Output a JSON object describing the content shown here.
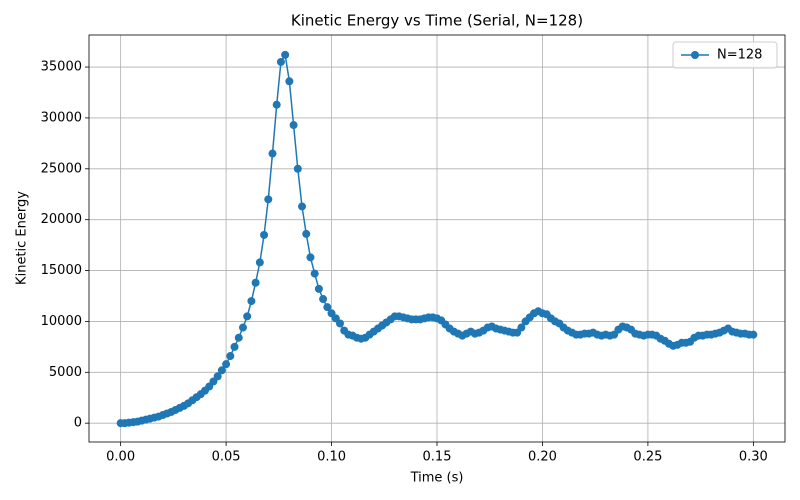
{
  "chart_data": {
    "type": "line",
    "title": "Kinetic Energy vs Time (Serial, N=128)",
    "x_label": "Time (s)",
    "y_label": "Kinetic Energy",
    "x": [
      0,
      0.002,
      0.004,
      0.006,
      0.008,
      0.01,
      0.012,
      0.014,
      0.016,
      0.018,
      0.02,
      0.022,
      0.024,
      0.026,
      0.028,
      0.03,
      0.032,
      0.034,
      0.036,
      0.038,
      0.04,
      0.042,
      0.044,
      0.046,
      0.048,
      0.05,
      0.052,
      0.054,
      0.056,
      0.058,
      0.06,
      0.062,
      0.064,
      0.066,
      0.068,
      0.07,
      0.072,
      0.074,
      0.076,
      0.078,
      0.08,
      0.082,
      0.084,
      0.086,
      0.088,
      0.09,
      0.092,
      0.094,
      0.096,
      0.098,
      0.1,
      0.102,
      0.104,
      0.106,
      0.108,
      0.11,
      0.112,
      0.114,
      0.116,
      0.118,
      0.12,
      0.122,
      0.124,
      0.126,
      0.128,
      0.13,
      0.132,
      0.134,
      0.136,
      0.138,
      0.14,
      0.142,
      0.144,
      0.146,
      0.148,
      0.15,
      0.152,
      0.154,
      0.156,
      0.158,
      0.16,
      0.162,
      0.164,
      0.166,
      0.168,
      0.17,
      0.172,
      0.174,
      0.176,
      0.178,
      0.18,
      0.182,
      0.184,
      0.186,
      0.188,
      0.19,
      0.192,
      0.194,
      0.196,
      0.198,
      0.2,
      0.202,
      0.204,
      0.206,
      0.208,
      0.21,
      0.212,
      0.214,
      0.216,
      0.218,
      0.22,
      0.222,
      0.224,
      0.226,
      0.228,
      0.23,
      0.232,
      0.234,
      0.236,
      0.238,
      0.24,
      0.242,
      0.244,
      0.246,
      0.248,
      0.25,
      0.252,
      0.254,
      0.256,
      0.258,
      0.26,
      0.262,
      0.264,
      0.266,
      0.268,
      0.27,
      0.272,
      0.274,
      0.276,
      0.278,
      0.28,
      0.282,
      0.284,
      0.286,
      0.288,
      0.29,
      0.292,
      0.294,
      0.296,
      0.298,
      0.3
    ],
    "series": [
      {
        "name": "N=128",
        "color": "#1f77b4",
        "values": [
          0,
          0,
          50,
          100,
          150,
          250,
          350,
          450,
          550,
          650,
          800,
          950,
          1100,
          1300,
          1500,
          1700,
          1950,
          2250,
          2550,
          2850,
          3200,
          3600,
          4100,
          4600,
          5200,
          5800,
          6600,
          7500,
          8400,
          9400,
          10500,
          12000,
          13800,
          15800,
          18500,
          22000,
          26500,
          31300,
          35500,
          36200,
          33600,
          29300,
          25000,
          21300,
          18600,
          16300,
          14700,
          13200,
          12200,
          11400,
          10800,
          10300,
          9800,
          9100,
          8700,
          8600,
          8400,
          8300,
          8400,
          8700,
          9000,
          9300,
          9600,
          9900,
          10200,
          10500,
          10500,
          10400,
          10300,
          10200,
          10200,
          10200,
          10300,
          10400,
          10400,
          10300,
          10100,
          9700,
          9300,
          9000,
          8800,
          8600,
          8800,
          9000,
          8800,
          8900,
          9100,
          9400,
          9500,
          9300,
          9200,
          9100,
          9000,
          8900,
          8900,
          9400,
          10000,
          10400,
          10800,
          11000,
          10800,
          10700,
          10300,
          10000,
          9800,
          9400,
          9100,
          8900,
          8700,
          8700,
          8800,
          8800,
          8900,
          8700,
          8600,
          8700,
          8600,
          8700,
          9200,
          9500,
          9400,
          9200,
          8800,
          8700,
          8600,
          8700,
          8700,
          8600,
          8300,
          8100,
          7800,
          7600,
          7700,
          7900,
          7900,
          8000,
          8400,
          8600,
          8600,
          8700,
          8700,
          8800,
          8900,
          9100,
          9300,
          9000,
          8900,
          8800,
          8800,
          8700,
          8700
        ]
      }
    ],
    "xlim": [
      -0.015,
      0.315
    ],
    "xticks": [
      {
        "value": 0,
        "label": "0.00"
      },
      {
        "value": 0.05,
        "label": "0.05"
      },
      {
        "value": 0.1,
        "label": "0.10"
      },
      {
        "value": 0.15,
        "label": "0.15"
      },
      {
        "value": 0.2,
        "label": "0.20"
      },
      {
        "value": 0.25,
        "label": "0.25"
      },
      {
        "value": 0.3,
        "label": "0.30"
      }
    ],
    "ylim": [
      -1850,
      38150
    ],
    "yticks": [
      0,
      5000,
      10000,
      15000,
      20000,
      25000,
      30000,
      35000
    ],
    "grid": true,
    "legend": "upper right",
    "marker": "circle"
  }
}
